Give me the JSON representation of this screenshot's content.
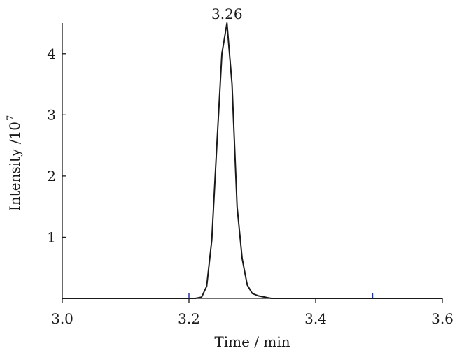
{
  "chart_data": {
    "type": "line",
    "xlabel": "Time / min",
    "ylabel": "Intensity /10",
    "ylabel_superscript": "7",
    "xlim": [
      3.0,
      3.6
    ],
    "ylim": [
      0,
      4.5
    ],
    "x_ticks": [
      3.0,
      3.2,
      3.4,
      3.6
    ],
    "x_tick_labels": [
      "3.0",
      "3.2",
      "3.4",
      "3.6"
    ],
    "y_ticks": [
      1,
      2,
      3,
      4
    ],
    "y_tick_labels": [
      "1",
      "2",
      "3",
      "4"
    ],
    "grid": false,
    "legend": "none",
    "line_color": "#1a1a1a",
    "marker_color": "#2233aa",
    "marker_ticks_x": [
      3.2,
      3.49
    ],
    "annotations": [
      {
        "text": "3.26",
        "x": 3.26,
        "y": 4.5
      }
    ],
    "series": [
      {
        "x": [
          3.0,
          3.21,
          3.22,
          3.228,
          3.236,
          3.244,
          3.252,
          3.26,
          3.268,
          3.276,
          3.284,
          3.292,
          3.3,
          3.31,
          3.32,
          3.33,
          3.6
        ],
        "y": [
          0,
          0,
          0.02,
          0.2,
          0.95,
          2.5,
          4.0,
          4.5,
          3.5,
          1.5,
          0.65,
          0.22,
          0.08,
          0.04,
          0.02,
          0,
          0
        ]
      }
    ]
  }
}
